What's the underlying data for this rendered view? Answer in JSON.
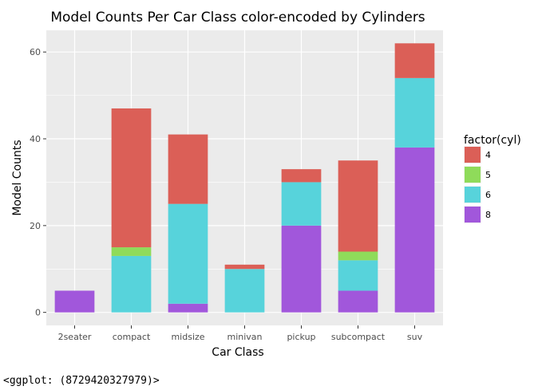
{
  "chart_data": {
    "type": "bar",
    "stacked": true,
    "title": "Model Counts Per Car Class color-encoded by Cylinders",
    "xlabel": "Car Class",
    "ylabel": "Model Counts",
    "categories": [
      "2seater",
      "compact",
      "midsize",
      "minivan",
      "pickup",
      "subcompact",
      "suv"
    ],
    "ylim": [
      -3,
      65
    ],
    "yticks": [
      0,
      20,
      40,
      60
    ],
    "grid": true,
    "legend_position": "right",
    "legend_title": "factor(cyl)",
    "series": [
      {
        "name": "8",
        "color": "#a157db",
        "values": [
          5,
          0,
          2,
          0,
          20,
          5,
          38
        ]
      },
      {
        "name": "6",
        "color": "#57d3db",
        "values": [
          0,
          13,
          23,
          10,
          10,
          7,
          16
        ]
      },
      {
        "name": "5",
        "color": "#8fdb5a",
        "values": [
          0,
          2,
          0,
          0,
          0,
          2,
          0
        ]
      },
      {
        "name": "4",
        "color": "#db5f57",
        "values": [
          0,
          32,
          16,
          1,
          3,
          21,
          8
        ]
      }
    ],
    "legend_order": [
      "4",
      "5",
      "6",
      "8"
    ]
  },
  "footer_text": "<ggplot: (8729420327979)>"
}
